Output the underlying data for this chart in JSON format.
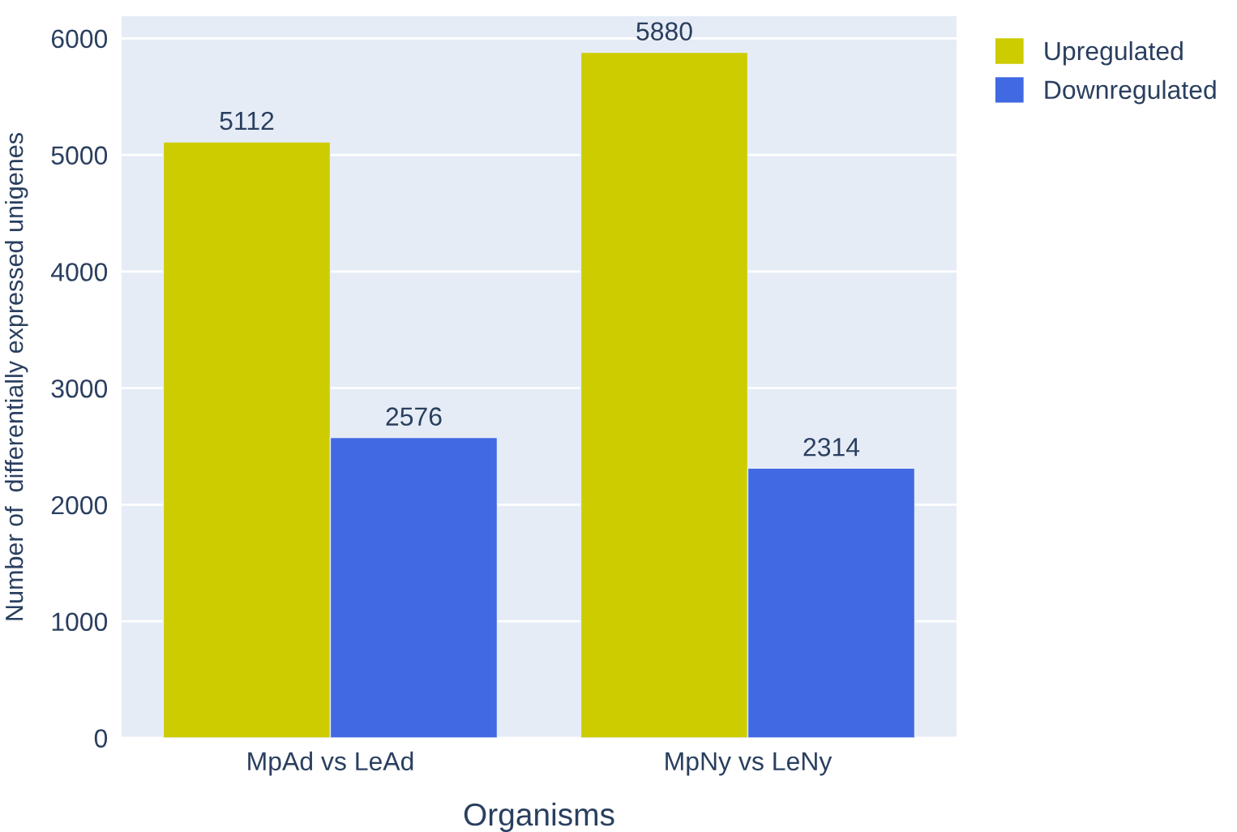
{
  "chart_data": {
    "type": "bar",
    "xlabel": "Organisms",
    "ylabel": "Number of  differentially expressed unigenes",
    "categories": [
      "MpAd vs LeAd",
      "MpNy vs LeNy"
    ],
    "series": [
      {
        "name": "Upregulated",
        "color": "#cccc00",
        "values": [
          5112,
          5880
        ]
      },
      {
        "name": "Downregulated",
        "color": "#4169e1",
        "values": [
          2576,
          2314
        ]
      }
    ],
    "ylim": [
      0,
      6190
    ],
    "yticks": [
      0,
      1000,
      2000,
      3000,
      4000,
      5000,
      6000
    ],
    "grid": "y",
    "legend": "top right",
    "data_labels": true
  }
}
